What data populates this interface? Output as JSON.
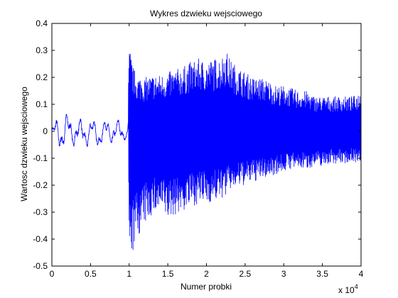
{
  "chart_data": {
    "type": "line",
    "title": "Wykres dzwieku wejsciowego",
    "xlabel": "Numer probki",
    "ylabel": "Wartosc dzwieku wejsciowego",
    "xlim": [
      0,
      40000
    ],
    "ylim": [
      -0.5,
      0.4
    ],
    "x_exponent_label": "x 10",
    "x_exponent_power": "4",
    "x_ticks": [
      0,
      5000,
      10000,
      15000,
      20000,
      25000,
      30000,
      35000,
      40000
    ],
    "x_tick_labels": [
      "0",
      "0.5",
      "1",
      "1.5",
      "2",
      "2.5",
      "3",
      "3.5",
      "4"
    ],
    "y_ticks": [
      0.4,
      0.3,
      0.2,
      0.1,
      0,
      -0.1,
      -0.2,
      -0.3,
      -0.4,
      -0.5
    ],
    "y_tick_labels": [
      "0.4",
      "0.3",
      "0.2",
      "0.1",
      "0",
      "-0.1",
      "-0.2",
      "-0.3",
      "-0.4",
      "-0.5"
    ],
    "grid": false,
    "line_color": "#0000ff",
    "series": [
      {
        "name": "",
        "envelope_x": [
          0,
          1000,
          2000,
          3000,
          4000,
          5000,
          6000,
          7000,
          8000,
          9000,
          9800,
          10000,
          10500,
          11000,
          12000,
          13000,
          14000,
          15000,
          16000,
          17000,
          18000,
          19000,
          20000,
          21000,
          22000,
          22500,
          23000,
          24000,
          25000,
          26000,
          27000,
          28000,
          29000,
          30000,
          31000,
          32000,
          33000,
          34000,
          35000,
          36000,
          37000,
          38000,
          39000,
          40000
        ],
        "envelope_upper": [
          0.03,
          0.07,
          0.08,
          0.06,
          0.05,
          0.06,
          0.04,
          0.05,
          0.06,
          0.04,
          0.02,
          0.32,
          0.24,
          0.21,
          0.2,
          0.21,
          0.21,
          0.22,
          0.23,
          0.24,
          0.26,
          0.27,
          0.26,
          0.27,
          0.28,
          0.31,
          0.27,
          0.24,
          0.22,
          0.2,
          0.2,
          0.19,
          0.17,
          0.17,
          0.16,
          0.15,
          0.15,
          0.13,
          0.13,
          0.13,
          0.13,
          0.13,
          0.13,
          0.15
        ],
        "envelope_lower": [
          -0.04,
          -0.08,
          -0.08,
          -0.06,
          -0.07,
          -0.06,
          -0.07,
          -0.05,
          -0.06,
          -0.05,
          -0.03,
          -0.46,
          -0.45,
          -0.4,
          -0.35,
          -0.31,
          -0.3,
          -0.33,
          -0.31,
          -0.3,
          -0.28,
          -0.27,
          -0.27,
          -0.26,
          -0.25,
          -0.24,
          -0.22,
          -0.21,
          -0.2,
          -0.19,
          -0.18,
          -0.17,
          -0.16,
          -0.15,
          -0.14,
          -0.14,
          -0.14,
          -0.13,
          -0.13,
          -0.12,
          -0.12,
          -0.12,
          -0.11,
          -0.13
        ]
      }
    ]
  }
}
